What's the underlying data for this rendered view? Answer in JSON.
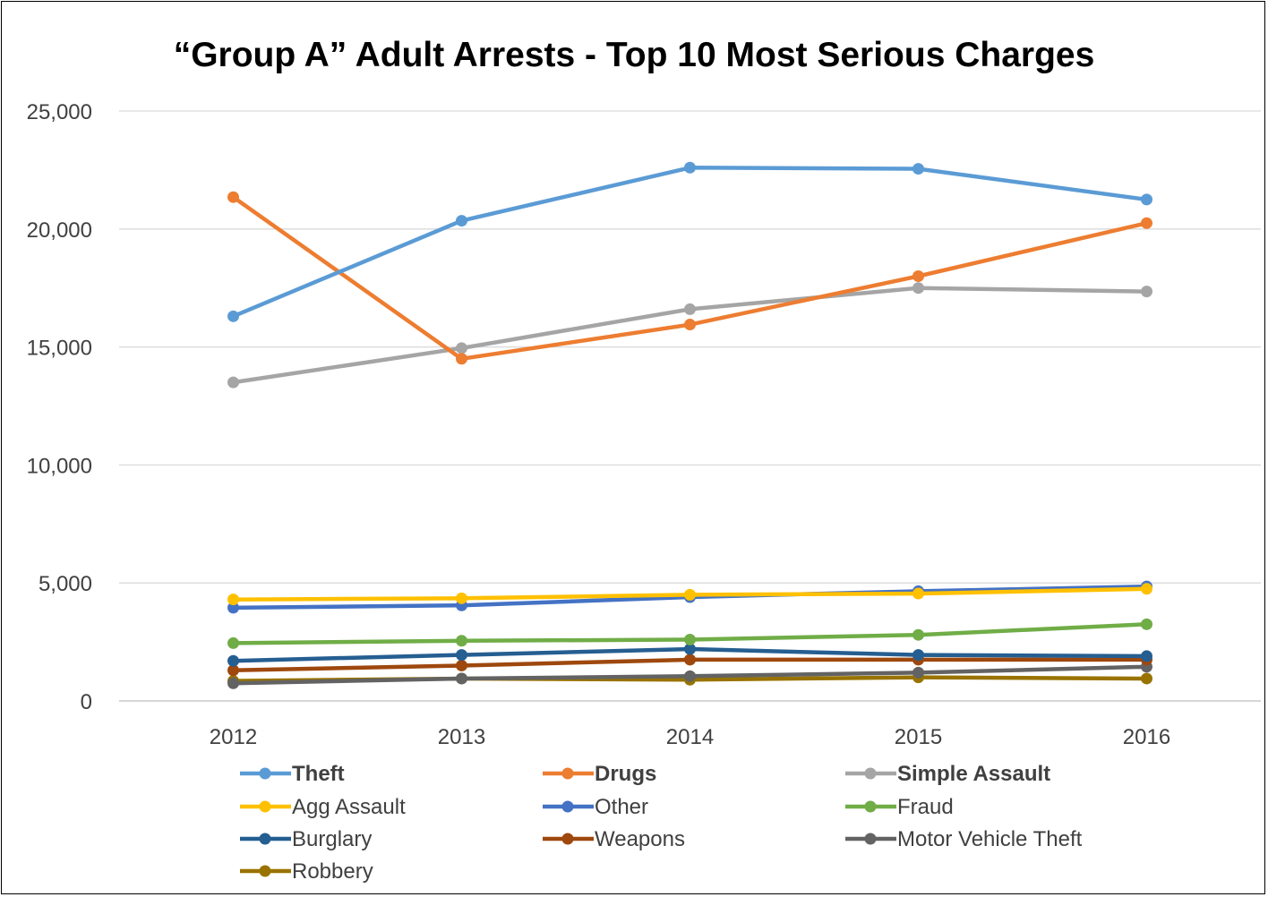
{
  "chart_data": {
    "type": "line",
    "title": "“Group A” Adult Arrests - Top 10 Most Serious Charges",
    "x": [
      "2012",
      "2013",
      "2014",
      "2015",
      "2016"
    ],
    "ylim": [
      0,
      25000
    ],
    "yticks": [
      0,
      5000,
      10000,
      15000,
      20000,
      25000
    ],
    "ytick_labels": [
      "0",
      "5,000",
      "10,000",
      "15,000",
      "20,000",
      "25,000"
    ],
    "grid": true,
    "legend_position": "bottom",
    "series": [
      {
        "name": "Theft",
        "color": "#5B9BD5",
        "bold": true,
        "values": [
          16300,
          20350,
          22600,
          22550,
          21250
        ]
      },
      {
        "name": "Drugs",
        "color": "#ED7D31",
        "bold": true,
        "values": [
          21350,
          14500,
          15950,
          18000,
          20250
        ]
      },
      {
        "name": "Simple Assault",
        "color": "#A5A5A5",
        "bold": true,
        "values": [
          13500,
          14950,
          16600,
          17500,
          17350
        ]
      },
      {
        "name": "Agg Assault",
        "color": "#FFC000",
        "bold": false,
        "values": [
          4300,
          4350,
          4500,
          4550,
          4750
        ]
      },
      {
        "name": "Other",
        "color": "#4472C4",
        "bold": false,
        "values": [
          3950,
          4050,
          4400,
          4650,
          4850
        ]
      },
      {
        "name": "Fraud",
        "color": "#70AD47",
        "bold": false,
        "values": [
          2450,
          2550,
          2600,
          2800,
          3250
        ]
      },
      {
        "name": "Burglary",
        "color": "#255E91",
        "bold": false,
        "values": [
          1700,
          1950,
          2200,
          1950,
          1900
        ]
      },
      {
        "name": "Weapons",
        "color": "#9E480E",
        "bold": false,
        "values": [
          1300,
          1500,
          1750,
          1750,
          1750
        ]
      },
      {
        "name": "Motor Vehicle Theft",
        "color": "#636363",
        "bold": false,
        "values": [
          750,
          950,
          1050,
          1200,
          1450
        ]
      },
      {
        "name": "Robbery",
        "color": "#997300",
        "bold": false,
        "values": [
          850,
          950,
          900,
          1000,
          950
        ]
      }
    ]
  }
}
